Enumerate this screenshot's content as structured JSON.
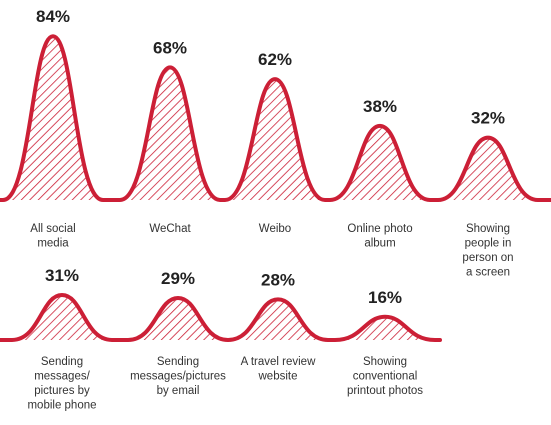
{
  "chart_data": {
    "type": "area",
    "ylim": [
      0,
      100
    ],
    "colors": {
      "accent": "#cc1f36",
      "text": "#222222",
      "background": "#ffffff"
    },
    "rows": [
      {
        "categories": [
          "All social media",
          "WeChat",
          "Weibo",
          "Online photo album",
          "Showing people in person on a screen"
        ],
        "values": [
          84,
          68,
          62,
          38,
          32
        ],
        "labels": [
          "84%",
          "68%",
          "62%",
          "38%",
          "32%"
        ],
        "label_lines": [
          [
            "All social",
            "media"
          ],
          [
            "WeChat"
          ],
          [
            "Weibo"
          ],
          [
            "Online photo",
            "album"
          ],
          [
            "Showing",
            "people in",
            "person on",
            "a screen"
          ]
        ]
      },
      {
        "categories": [
          "Sending messages/ pictures by mobile phone",
          "Sending messages/pictures by email",
          "A travel review website",
          "Showing conventional printout photos"
        ],
        "values": [
          31,
          29,
          28,
          16
        ],
        "labels": [
          "31%",
          "29%",
          "28%",
          "16%"
        ],
        "label_lines": [
          [
            "Sending",
            "messages/",
            "pictures by",
            "mobile phone"
          ],
          [
            "Sending",
            "messages/pictures",
            "by email"
          ],
          [
            "A travel review",
            "website"
          ],
          [
            "Showing",
            "conventional",
            "printout photos"
          ]
        ]
      }
    ]
  }
}
